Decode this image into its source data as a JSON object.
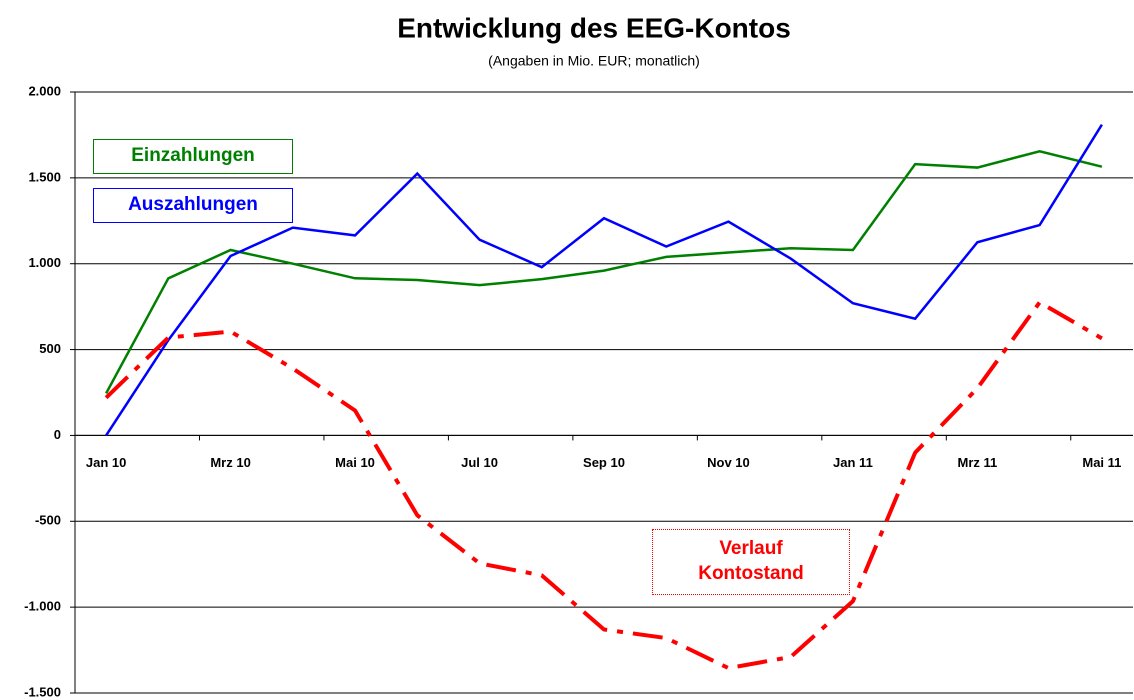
{
  "chart_data": {
    "type": "line",
    "title": "Entwicklung des EEG-Kontos",
    "subtitle": "(Angaben in Mio. EUR; monatlich)",
    "categories": [
      "Jan 10",
      null,
      "Mrz 10",
      null,
      "Mai 10",
      null,
      "Jul 10",
      null,
      "Sep 10",
      null,
      "Nov 10",
      null,
      "Jan 11",
      null,
      "Mrz 11",
      null,
      "Mai 11"
    ],
    "series": [
      {
        "name": "Einzahlungen",
        "color": "#008000",
        "values": [
          245,
          915,
          1080,
          1000,
          915,
          905,
          875,
          910,
          960,
          1040,
          1065,
          1090,
          1080,
          1580,
          1560,
          1655,
          1565
        ]
      },
      {
        "name": "Auszahlungen",
        "color": "#0000ff",
        "values": [
          0,
          555,
          1045,
          1210,
          1165,
          1525,
          1140,
          980,
          1265,
          1100,
          1245,
          1030,
          770,
          680,
          1125,
          1225,
          1810
        ]
      },
      {
        "name": "Verlauf Kontostand",
        "color": "#ff0000",
        "values": [
          220,
          570,
          605,
          390,
          145,
          -465,
          -745,
          -815,
          -1130,
          -1180,
          -1355,
          -1290,
          -965,
          -100,
          275,
          775,
          565
        ]
      }
    ],
    "ylim": [
      -1500,
      2000
    ],
    "yticks": [
      {
        "value": -1500,
        "label": "-1.500"
      },
      {
        "value": -1000,
        "label": "-1.000"
      },
      -500,
      0,
      500,
      {
        "value": 1000,
        "label": "1.000"
      },
      {
        "value": 1500,
        "label": "1.500"
      },
      {
        "value": 2000,
        "label": "2.000"
      }
    ],
    "grid": true
  }
}
